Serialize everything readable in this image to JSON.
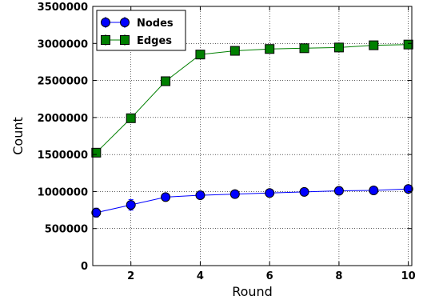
{
  "chart_data": {
    "type": "line",
    "xlabel": "Round",
    "ylabel": "Count",
    "xlim": [
      0.9,
      10.1
    ],
    "ylim": [
      0,
      3500000
    ],
    "x_ticks": [
      2,
      4,
      6,
      8,
      10
    ],
    "y_ticks": [
      0,
      500000,
      1000000,
      1500000,
      2000000,
      2500000,
      3000000,
      3500000
    ],
    "x_tick_labels": [
      "2",
      "4",
      "6",
      "8",
      "10"
    ],
    "y_tick_labels": [
      "0",
      "500000",
      "1000000",
      "1500000",
      "2000000",
      "2500000",
      "3000000",
      "3500000"
    ],
    "grid": true,
    "legend_position": "top-left",
    "x": [
      1,
      2,
      3,
      4,
      5,
      6,
      7,
      8,
      9,
      10
    ],
    "series": [
      {
        "name": "Nodes",
        "values": [
          715000,
          820000,
          925000,
          950000,
          965000,
          980000,
          995000,
          1010000,
          1015000,
          1035000
        ],
        "errors": [
          60000,
          70000,
          20000,
          20000,
          15000,
          15000,
          15000,
          15000,
          15000,
          15000
        ],
        "color": "#0000ff",
        "line_color": "#0000ff",
        "marker": "circle"
      },
      {
        "name": "Edges",
        "values": [
          1525000,
          1990000,
          2490000,
          2850000,
          2900000,
          2925000,
          2935000,
          2945000,
          2975000,
          2985000
        ],
        "errors": [
          20000,
          20000,
          20000,
          20000,
          20000,
          20000,
          20000,
          20000,
          20000,
          20000
        ],
        "color": "#008000",
        "line_color": "#008000",
        "marker": "square"
      }
    ]
  }
}
